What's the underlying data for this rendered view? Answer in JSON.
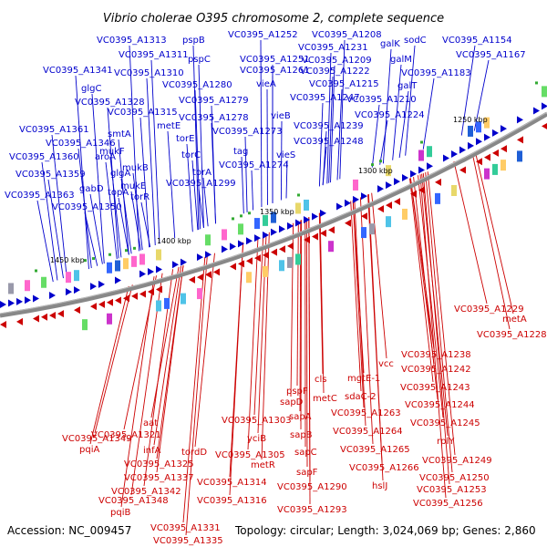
{
  "title": "Vibrio cholerae O395 chromosome 2, complete sequence",
  "footer": {
    "accession": "Accession: NC_009457",
    "summary": "Topology: circular; Length: 3,024,069 bp; Genes: 2,860"
  },
  "ticks": [
    "1250 kbp",
    "1300 kbp",
    "1350 kbp",
    "1400 kbp",
    "1450 kbp"
  ],
  "colors": {
    "plus_strand": "#0000cc",
    "minus_strand": "#cc0000",
    "backbone": "#888888"
  },
  "plus_labels": [
    "VC0395_A1313",
    "pspB",
    "VC0395_A1252",
    "VC0395_A1208",
    "galK",
    "sodC",
    "VC0395_A1154",
    "VC0395_A1311",
    "pspC",
    "VC0395_A1231",
    "galM",
    "VC0395_A1167",
    "VC0395_A1341",
    "VC0395_A1310",
    "VC0395_A1251",
    "VC0395_A1209",
    "VC0395_A1183",
    "glgC",
    "VC0395_A1280",
    "VC0395_A1261",
    "VC0395_A1222",
    "galT",
    "VC0395_A1328",
    "VC0395_A1279",
    "vieA",
    "VC0395_A1215",
    "smtA",
    "VC0395_A1315",
    "VC0395_A1247",
    "VC0395_A1210",
    "metE",
    "VC0395_A1278",
    "vieB",
    "VC0395_A1224",
    "VC0395_A1361",
    "torE",
    "VC0395_A1273",
    "VC0395_A1239",
    "VC0395_A1346",
    "mukF",
    "VC0395_A1248",
    "VC0395_A1360",
    "aroA",
    "torC",
    "tag",
    "vieS",
    "mukB",
    "torA",
    "VC0395_A1274",
    "VC0395_A1359",
    "glgA",
    "mukE",
    "VC0395_A1299",
    "gabD",
    "topA",
    "VC0395_A1363",
    "torR",
    "VC0395_A1350"
  ],
  "minus_labels": [
    "metA",
    "VC0395_A1229",
    "VC0395_A1228",
    "VC0395_A1238",
    "vcc",
    "VC0395_A1242",
    "VC0395_A1243",
    "VC0395_A1244",
    "VC0395_A1245",
    "cls",
    "mgtE-1",
    "pspF",
    "metC",
    "sdaC-2",
    "sapD",
    "VC0395_A1263",
    "sapA",
    "VC0395_A1303",
    "VC0395_A1264",
    "aat",
    "VC0395_A1321",
    "yciB",
    "sapB",
    "VC0395_A1349",
    "rplY",
    "pqiA",
    "infA",
    "sapC",
    "VC0395_A1265",
    "tordD",
    "VC0395_A1305",
    "VC0395_A1249",
    "VC0395_A1325",
    "metR",
    "sapF",
    "VC0395_A1266",
    "VC0395_A1337",
    "VC0395_A1314",
    "VC0395_A1290",
    "hslJ",
    "VC0395_A1250",
    "VC0395_A1342",
    "VC0395_A1253",
    "VC0395_A1348",
    "VC0395_A1316",
    "VC0395_A1293",
    "VC0395_A1256",
    "pqiB",
    "VC0395_A1331",
    "VC0395_A1335"
  ]
}
